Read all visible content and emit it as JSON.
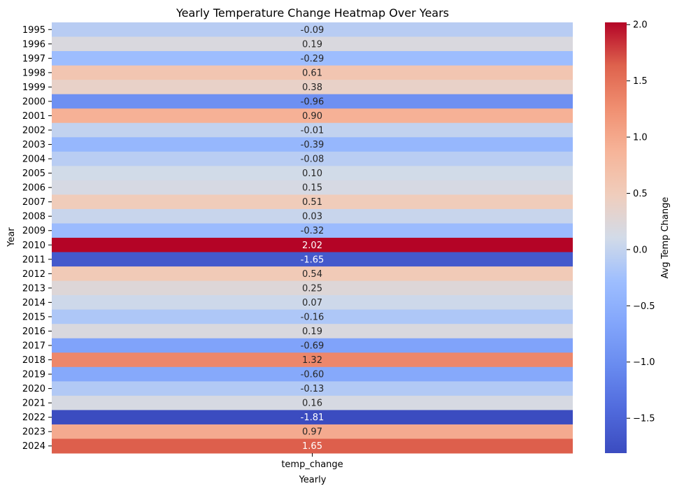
{
  "chart_data": {
    "type": "heatmap",
    "title": "Yearly Temperature Change Heatmap Over Years",
    "xlabel": "Yearly",
    "ylabel": "Year",
    "x_categories": [
      "temp_change"
    ],
    "y_categories": [
      "1995",
      "1996",
      "1997",
      "1998",
      "1999",
      "2000",
      "2001",
      "2002",
      "2003",
      "2004",
      "2005",
      "2006",
      "2007",
      "2008",
      "2009",
      "2010",
      "2011",
      "2012",
      "2013",
      "2014",
      "2015",
      "2016",
      "2017",
      "2018",
      "2019",
      "2020",
      "2021",
      "2022",
      "2023",
      "2024"
    ],
    "values": [
      -0.09,
      0.19,
      -0.29,
      0.61,
      0.38,
      -0.96,
      0.9,
      -0.01,
      -0.39,
      -0.08,
      0.1,
      0.15,
      0.51,
      0.03,
      -0.32,
      2.02,
      -1.65,
      0.54,
      0.25,
      0.07,
      -0.16,
      0.19,
      -0.69,
      1.32,
      -0.6,
      -0.13,
      0.16,
      -1.81,
      0.97,
      1.65
    ],
    "colormap": "coolwarm",
    "vmin": -1.81,
    "vmax": 2.02,
    "annotations": true,
    "colorbar": {
      "label": "Avg Temp Change",
      "ticks": [
        -1.5,
        -1.0,
        -0.5,
        0.0,
        0.5,
        1.0,
        1.5,
        2.0
      ],
      "tick_labels": [
        "−1.5",
        "−1.0",
        "−0.5",
        "0.0",
        "0.5",
        "1.0",
        "1.5",
        "2.0"
      ]
    }
  }
}
